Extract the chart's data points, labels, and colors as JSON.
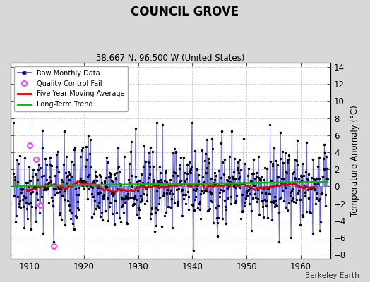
{
  "title": "COUNCIL GROVE",
  "subtitle": "38.667 N, 96.500 W (United States)",
  "ylabel": "Temperature Anomaly (°C)",
  "credit": "Berkeley Earth",
  "xlim": [
    1906.5,
    1965.5
  ],
  "ylim": [
    -8.5,
    14.5
  ],
  "yticks": [
    -8,
    -6,
    -4,
    -2,
    0,
    2,
    4,
    6,
    8,
    10,
    12,
    14
  ],
  "xticks": [
    1910,
    1920,
    1930,
    1940,
    1950,
    1960
  ],
  "bg_color": "#d8d8d8",
  "plot_bg_color": "#ffffff",
  "raw_line_color": "#4444dd",
  "raw_dot_color": "#000000",
  "ma_color": "#dd0000",
  "trend_color": "#00bb00",
  "qc_fail_color": "#ff44ff",
  "qc_fail_times": [
    1910.0,
    1911.25,
    1912.0,
    1914.5
  ],
  "qc_fail_values": [
    4.8,
    3.2,
    -2.2,
    -7.0
  ],
  "trend_slope": 0.008,
  "trend_intercept": 0.28
}
